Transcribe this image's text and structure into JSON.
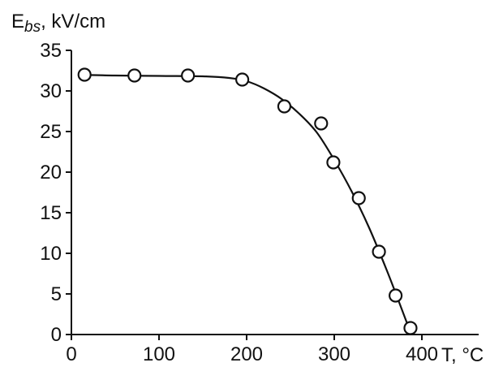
{
  "chart_data": {
    "type": "scatter",
    "title": "",
    "ylabel": {
      "symbol": "E",
      "subscript": "bs",
      "unit": ", kV/cm"
    },
    "xlabel": "T, °C",
    "xlim": [
      0,
      400
    ],
    "ylim": [
      0,
      35
    ],
    "xticks": [
      0,
      100,
      200,
      300,
      400
    ],
    "yticks": [
      0,
      5,
      10,
      15,
      20,
      25,
      30,
      35
    ],
    "grid": false,
    "legend": false,
    "series": [
      {
        "marker": "open-circle",
        "points": [
          {
            "x": 15,
            "y": 32.0
          },
          {
            "x": 72,
            "y": 31.9
          },
          {
            "x": 133,
            "y": 31.9
          },
          {
            "x": 195,
            "y": 31.4
          },
          {
            "x": 243,
            "y": 28.1
          },
          {
            "x": 285,
            "y": 26.0
          },
          {
            "x": 299,
            "y": 21.2
          },
          {
            "x": 328,
            "y": 16.8
          },
          {
            "x": 351,
            "y": 10.2
          },
          {
            "x": 370,
            "y": 4.8
          },
          {
            "x": 387,
            "y": 0.8
          }
        ]
      }
    ],
    "fit_curve": [
      [
        10,
        32.0
      ],
      [
        50,
        31.9
      ],
      [
        100,
        31.85
      ],
      [
        150,
        31.8
      ],
      [
        180,
        31.6
      ],
      [
        200,
        31.2
      ],
      [
        220,
        30.3
      ],
      [
        240,
        29.0
      ],
      [
        260,
        27.2
      ],
      [
        280,
        24.9
      ],
      [
        300,
        21.5
      ],
      [
        320,
        17.6
      ],
      [
        340,
        13.1
      ],
      [
        360,
        7.9
      ],
      [
        375,
        3.7
      ],
      [
        388,
        0.0
      ]
    ]
  }
}
